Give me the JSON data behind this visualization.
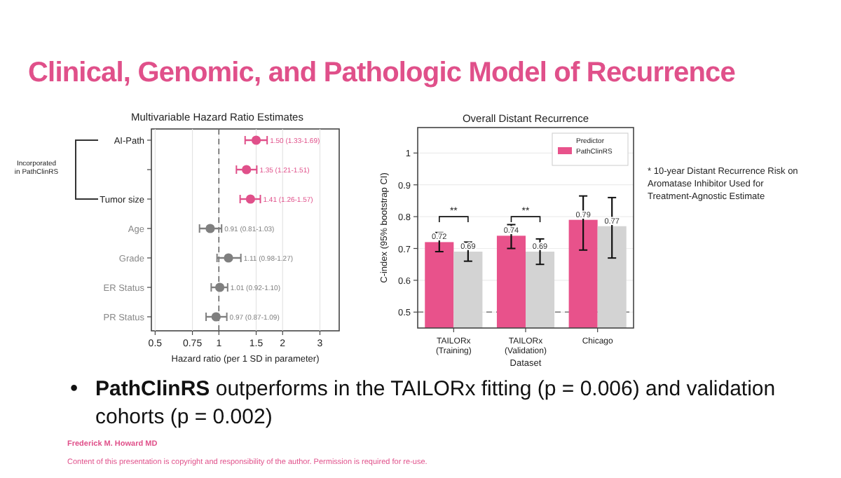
{
  "chart_data": [
    {
      "type": "scatter",
      "orientation": "horizontal",
      "title": "Multivariable Hazard Ratio Estimates",
      "xlabel": "Hazard ratio (per 1 SD in parameter)",
      "categories": [
        "AI-Path",
        null,
        "Tumor size",
        "Age",
        "Grade",
        "ER Status",
        "PR Status"
      ],
      "values": [
        1.5,
        1.35,
        1.41,
        0.91,
        1.11,
        1.01,
        0.97
      ],
      "errors": [
        [
          1.33,
          1.69
        ],
        [
          1.21,
          1.51
        ],
        [
          1.26,
          1.57
        ],
        [
          0.81,
          1.03
        ],
        [
          0.98,
          1.27
        ],
        [
          0.92,
          1.1
        ],
        [
          0.87,
          1.09
        ]
      ],
      "value_labels": [
        "1.50 (1.33-1.69)",
        "1.35 (1.21-1.51)",
        "1.41 (1.26-1.57)",
        "0.91 (0.81-1.03)",
        "1.11 (0.98-1.27)",
        "1.01 (0.92-1.10)",
        "0.97 (0.87-1.09)"
      ],
      "colors": [
        "#e0508a",
        "#e0508a",
        "#e0508a",
        "#7f7f7f",
        "#7f7f7f",
        "#7f7f7f",
        "#7f7f7f"
      ],
      "log": "x",
      "xlim": [
        0.48,
        3.7
      ],
      "xticks": [
        0.5,
        0.75,
        1,
        1.5,
        2,
        3
      ],
      "grid": "x",
      "marker": "circle",
      "ref_lines": [
        {
          "axis": "x",
          "value": 1,
          "color": "#555555",
          "line_style": "dashed"
        }
      ],
      "annotations": [
        "Clinical, Genomic, and Pathologic Model of Recurrence",
        "Incorporated in PathClinRS",
        "PathClinRS outperforms in the TAILORx fitting (p = 0.006) and validation cohorts (p = 0.002)",
        "Frederick M. Howard MD",
        "Content of this presentation is copyright and responsibility of the author. Permission is required for re-use.",
        "•"
      ]
    },
    {
      "type": "bar",
      "title": "Overall Distant Recurrence",
      "xlabel": "Dataset",
      "ylabel": "C-index (95% bootstrap CI)",
      "legend_title": "Predictor",
      "categories": [
        "TAILORx (Training)",
        "TAILORx (Validation)",
        "Chicago"
      ],
      "series": [
        {
          "name": "PathClinRS",
          "color": "#e8528b",
          "values": [
            0.72,
            0.74,
            0.79
          ],
          "errors": [
            [
              0.69,
              0.75
            ],
            [
              0.7,
              0.775
            ],
            [
              0.695,
              0.865
            ]
          ]
        },
        {
          "color": "#d3d3d3",
          "values": [
            0.69,
            0.69,
            0.77
          ],
          "errors": [
            [
              0.66,
              0.72
            ],
            [
              0.65,
              0.73
            ],
            [
              0.67,
              0.86
            ]
          ]
        }
      ],
      "ylim": [
        0.45,
        1.08
      ],
      "yticks": [
        0.5,
        0.6,
        0.7,
        0.8,
        0.9,
        1.0
      ],
      "grid": "y",
      "legend": "top right",
      "data_labels": true,
      "ref_lines": [
        {
          "axis": "y",
          "value": 0.5,
          "color": "#777777",
          "line_style": "dashed"
        }
      ],
      "annotations": [
        "**",
        "**",
        "* 10-year Distant Recurrence Risk on Aromatase Inhibitor Used for Treatment-Agnostic Estimate"
      ]
    }
  ]
}
